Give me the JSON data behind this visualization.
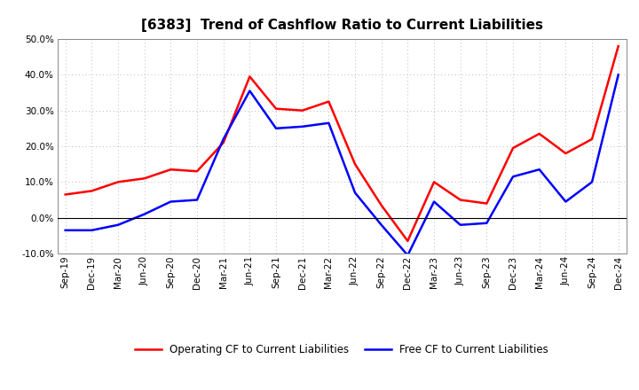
{
  "title": "[6383]  Trend of Cashflow Ratio to Current Liabilities",
  "x_labels": [
    "Sep-19",
    "Dec-19",
    "Mar-20",
    "Jun-20",
    "Sep-20",
    "Dec-20",
    "Mar-21",
    "Jun-21",
    "Sep-21",
    "Dec-21",
    "Mar-22",
    "Jun-22",
    "Sep-22",
    "Dec-22",
    "Mar-23",
    "Jun-23",
    "Sep-23",
    "Dec-23",
    "Mar-24",
    "Jun-24",
    "Sep-24",
    "Dec-24"
  ],
  "operating_cf": [
    6.5,
    7.5,
    10.0,
    11.0,
    13.5,
    13.0,
    21.0,
    39.5,
    30.5,
    30.0,
    32.5,
    15.0,
    3.5,
    -6.5,
    10.0,
    5.0,
    4.0,
    19.5,
    23.5,
    18.0,
    22.0,
    48.0
  ],
  "free_cf": [
    -3.5,
    -3.5,
    -2.0,
    1.0,
    4.5,
    5.0,
    22.0,
    35.5,
    25.0,
    25.5,
    26.5,
    7.0,
    -2.0,
    -10.5,
    4.5,
    -2.0,
    -1.5,
    11.5,
    13.5,
    4.5,
    10.0,
    40.0
  ],
  "operating_color": "#FF0000",
  "free_color": "#0000FF",
  "ylim": [
    -10.0,
    50.0
  ],
  "yticks": [
    -10.0,
    0.0,
    10.0,
    20.0,
    30.0,
    40.0,
    50.0
  ],
  "legend_op": "Operating CF to Current Liabilities",
  "legend_free": "Free CF to Current Liabilities",
  "grid_color": "#bbbbbb",
  "bg_color": "#ffffff",
  "title_fontsize": 11,
  "title_fontweight": "bold",
  "axis_fontsize": 7.5,
  "legend_fontsize": 8.5,
  "line_width": 1.8
}
